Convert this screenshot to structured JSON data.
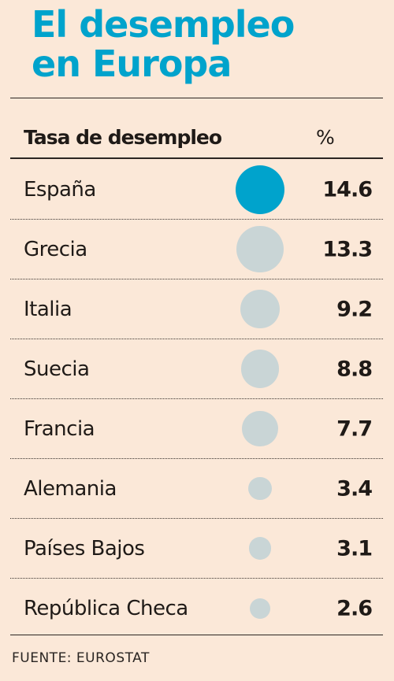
{
  "title_line1": "El desempleo",
  "title_line2": "en Europa",
  "header": {
    "label": "Tasa de desempleo",
    "unit": "%"
  },
  "source": "FUENTE:  EUROSTAT",
  "colors": {
    "highlight": "#00a3cc",
    "bubble": "#c9d5d6",
    "background": "#fbe8d8"
  },
  "chart_data": {
    "type": "bubble-table",
    "title": "El desempleo en Europa",
    "ylabel": "Tasa de desempleo",
    "unit": "%",
    "highlight": "España",
    "categories": [
      "España",
      "Grecia",
      "Italia",
      "Suecia",
      "Francia",
      "Alemania",
      "Países Bajos",
      "República Checa"
    ],
    "values": [
      14.6,
      13.3,
      9.2,
      8.8,
      7.7,
      3.4,
      3.1,
      2.6
    ],
    "labels": [
      "14.6",
      "13.3",
      "9.2",
      "8.8",
      "7.7",
      "3.4",
      "3.1",
      "2.6"
    ]
  }
}
